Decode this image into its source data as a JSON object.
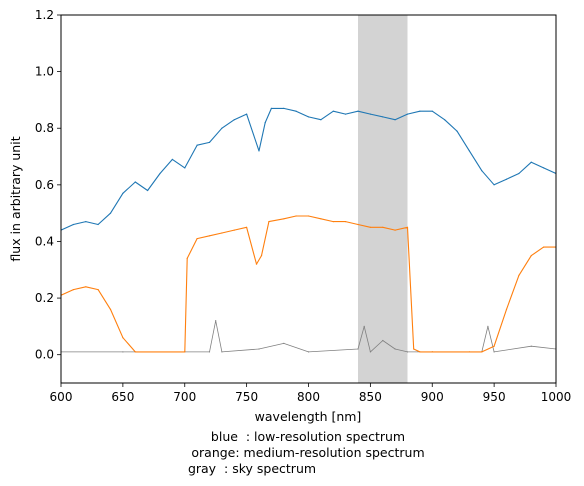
{
  "chart_data": {
    "type": "line",
    "xlabel": "wavelength [nm]",
    "ylabel": "flux in arbitrary unit",
    "xlim": [
      600,
      1000
    ],
    "ylim": [
      -0.1,
      1.2
    ],
    "x_ticks": [
      600,
      650,
      700,
      750,
      800,
      850,
      900,
      950,
      1000
    ],
    "x_tick_labels": [
      "600",
      "650",
      "700",
      "750",
      "800",
      "850",
      "900",
      "950",
      "1000"
    ],
    "y_ticks": [
      0.0,
      0.2,
      0.4,
      0.6,
      0.8,
      1.0,
      1.2
    ],
    "y_tick_labels": [
      "0.0",
      "0.2",
      "0.4",
      "0.6",
      "0.8",
      "1.0",
      "1.2"
    ],
    "grid": false,
    "shaded_region": {
      "x_range": [
        840,
        880
      ],
      "color": "#d3d3d3"
    },
    "caption_lines": [
      "blue  : low-resolution spectrum",
      "orange: medium-resolution spectrum",
      "gray  : sky spectrum"
    ],
    "series": [
      {
        "key": "low_resolution",
        "color": "#1f77b4",
        "x": [
          600,
          610,
          620,
          630,
          640,
          650,
          660,
          670,
          680,
          690,
          700,
          710,
          720,
          730,
          740,
          750,
          760,
          765,
          770,
          780,
          790,
          800,
          810,
          820,
          830,
          840,
          850,
          860,
          870,
          880,
          890,
          900,
          910,
          920,
          930,
          940,
          950,
          960,
          970,
          980,
          990,
          1000
        ],
        "values": [
          0.44,
          0.46,
          0.47,
          0.46,
          0.5,
          0.57,
          0.61,
          0.58,
          0.64,
          0.69,
          0.66,
          0.74,
          0.75,
          0.8,
          0.83,
          0.85,
          0.72,
          0.82,
          0.87,
          0.87,
          0.86,
          0.84,
          0.83,
          0.86,
          0.85,
          0.86,
          0.85,
          0.84,
          0.83,
          0.85,
          0.86,
          0.86,
          0.83,
          0.79,
          0.72,
          0.65,
          0.6,
          0.62,
          0.64,
          0.68,
          0.66,
          0.64
        ]
      },
      {
        "key": "medium_resolution",
        "color": "#ff7f0e",
        "x": [
          600,
          610,
          620,
          630,
          640,
          650,
          660,
          700,
          702,
          710,
          720,
          730,
          740,
          750,
          758,
          762,
          768,
          780,
          790,
          800,
          810,
          820,
          830,
          840,
          850,
          860,
          870,
          880,
          885,
          890,
          900,
          930,
          940,
          950,
          960,
          970,
          980,
          990,
          1000
        ],
        "values": [
          0.21,
          0.23,
          0.24,
          0.23,
          0.16,
          0.06,
          0.01,
          0.01,
          0.34,
          0.41,
          0.42,
          0.43,
          0.44,
          0.45,
          0.32,
          0.35,
          0.47,
          0.48,
          0.49,
          0.49,
          0.48,
          0.47,
          0.47,
          0.46,
          0.45,
          0.45,
          0.44,
          0.45,
          0.02,
          0.01,
          0.01,
          0.01,
          0.01,
          0.03,
          0.16,
          0.28,
          0.35,
          0.38,
          0.38
        ]
      },
      {
        "key": "sky",
        "color": "#808080",
        "x": [
          600,
          650,
          700,
          720,
          725,
          730,
          760,
          780,
          800,
          840,
          845,
          850,
          860,
          870,
          880,
          900,
          940,
          945,
          950,
          980,
          1000
        ],
        "values": [
          0.01,
          0.01,
          0.01,
          0.01,
          0.12,
          0.01,
          0.02,
          0.04,
          0.01,
          0.02,
          0.1,
          0.01,
          0.05,
          0.02,
          0.01,
          0.01,
          0.01,
          0.1,
          0.01,
          0.03,
          0.02
        ]
      }
    ]
  }
}
